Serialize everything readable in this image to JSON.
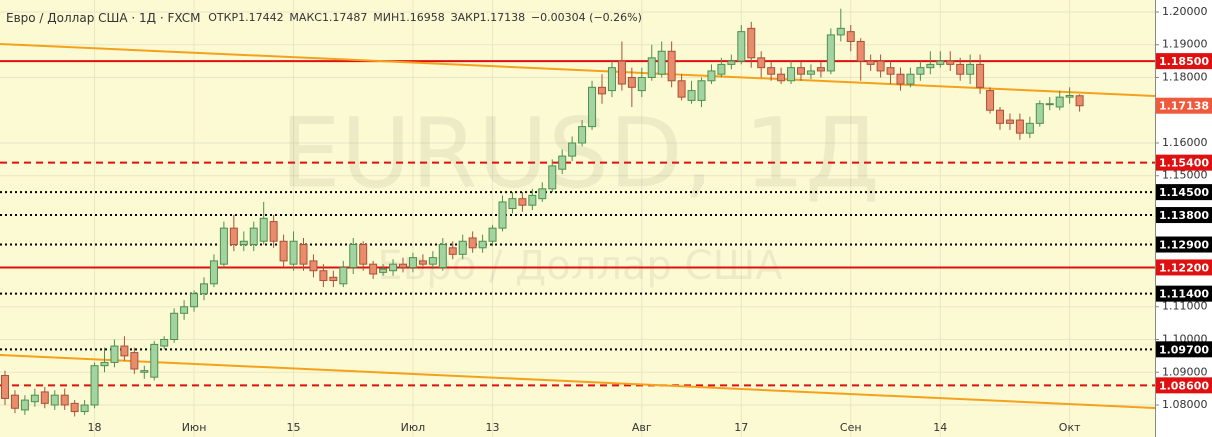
{
  "chart_data": {
    "type": "candlestick",
    "title": "Евро / Доллар США · 1Д · FXCM",
    "header": {
      "open_label": "ОТКР",
      "open": "1.17442",
      "high_label": "МАКС",
      "high": "1.17487",
      "low_label": "МИН",
      "low": "1.16958",
      "close_label": "ЗАКР",
      "close": "1.17138",
      "change": "−0.00304 (−0.26%)"
    },
    "watermark": {
      "symbol": "EURUSD, 1Д",
      "description": "Евро / Доллар США"
    },
    "categories": [
      null,
      null,
      null,
      null,
      null,
      null,
      null,
      null,
      null,
      "18",
      null,
      null,
      null,
      null,
      null,
      null,
      null,
      null,
      null,
      "Июн",
      null,
      null,
      null,
      null,
      null,
      null,
      null,
      null,
      null,
      "15",
      null,
      null,
      null,
      null,
      null,
      null,
      null,
      null,
      null,
      null,
      null,
      "Июл",
      null,
      null,
      null,
      null,
      null,
      null,
      null,
      "13",
      null,
      null,
      null,
      null,
      null,
      null,
      null,
      null,
      null,
      null,
      null,
      null,
      null,
      null,
      "Авг",
      null,
      null,
      null,
      null,
      null,
      null,
      null,
      null,
      null,
      "17",
      null,
      null,
      null,
      null,
      null,
      null,
      null,
      null,
      null,
      null,
      "Сен",
      null,
      null,
      null,
      null,
      null,
      null,
      null,
      null,
      "14",
      null,
      null,
      null,
      null,
      null,
      null,
      null,
      null,
      null,
      null,
      null,
      null,
      "Окт",
      null
    ],
    "open": [
      1.089,
      1.083,
      1.0785,
      1.081,
      1.084,
      1.08,
      1.083,
      1.0805,
      1.078,
      1.08,
      1.092,
      1.093,
      1.098,
      1.096,
      1.09,
      1.0885,
      1.098,
      1.1,
      1.108,
      1.11,
      1.114,
      1.117,
      1.123,
      1.134,
      1.129,
      1.129,
      1.13,
      1.136,
      1.13,
      1.123,
      1.129,
      1.124,
      1.121,
      1.119,
      1.117,
      1.122,
      1.129,
      1.123,
      1.1205,
      1.121,
      1.123,
      1.122,
      1.124,
      1.123,
      1.122,
      1.128,
      1.126,
      1.131,
      1.128,
      1.13,
      1.134,
      1.14,
      1.143,
      1.141,
      1.143,
      1.146,
      1.152,
      1.156,
      1.16,
      1.165,
      1.177,
      1.176,
      1.185,
      1.18,
      1.176,
      1.18,
      1.181,
      1.188,
      1.179,
      1.173,
      1.173,
      1.179,
      1.181,
      1.184,
      1.185,
      1.195,
      1.186,
      1.183,
      1.181,
      1.179,
      1.183,
      1.181,
      1.183,
      1.182,
      1.193,
      1.194,
      1.191,
      1.185,
      1.185,
      1.183,
      1.181,
      1.178,
      1.181,
      1.183,
      1.184,
      1.185,
      1.184,
      1.181,
      1.184,
      1.176,
      1.17,
      1.167,
      1.167,
      1.163,
      1.166,
      1.172,
      1.171,
      1.174,
      1.17442
    ],
    "high": [
      1.0905,
      1.0845,
      1.083,
      1.085,
      1.0855,
      1.0845,
      1.085,
      1.0815,
      1.0815,
      1.093,
      1.0975,
      1.1,
      1.101,
      1.0975,
      1.092,
      1.0995,
      1.101,
      1.1095,
      1.112,
      1.115,
      1.119,
      1.126,
      1.136,
      1.138,
      1.133,
      1.136,
      1.142,
      1.138,
      1.132,
      1.133,
      1.131,
      1.126,
      1.123,
      1.121,
      1.124,
      1.131,
      1.13,
      1.124,
      1.123,
      1.1245,
      1.125,
      1.1265,
      1.126,
      1.127,
      1.131,
      1.13,
      1.132,
      1.133,
      1.132,
      1.135,
      1.144,
      1.145,
      1.145,
      1.146,
      1.148,
      1.155,
      1.158,
      1.162,
      1.167,
      1.179,
      1.181,
      1.185,
      1.191,
      1.183,
      1.183,
      1.19,
      1.191,
      1.191,
      1.181,
      1.179,
      1.18,
      1.184,
      1.186,
      1.187,
      1.196,
      1.197,
      1.188,
      1.185,
      1.183,
      1.185,
      1.185,
      1.184,
      1.185,
      1.195,
      1.201,
      1.196,
      1.192,
      1.187,
      1.187,
      1.185,
      1.183,
      1.183,
      1.185,
      1.188,
      1.188,
      1.188,
      1.186,
      1.187,
      1.187,
      1.177,
      1.171,
      1.169,
      1.169,
      1.168,
      1.173,
      1.174,
      1.176,
      1.177,
      1.17487
    ],
    "low": [
      1.08,
      1.0775,
      1.077,
      1.0795,
      1.079,
      1.0785,
      1.0785,
      1.0765,
      1.077,
      1.079,
      1.09,
      1.0915,
      1.0935,
      1.0895,
      1.088,
      1.0875,
      1.097,
      1.099,
      1.106,
      1.1085,
      1.112,
      1.116,
      1.122,
      1.127,
      1.127,
      1.127,
      1.129,
      1.128,
      1.122,
      1.121,
      1.121,
      1.119,
      1.116,
      1.116,
      1.116,
      1.12,
      1.121,
      1.1185,
      1.1195,
      1.1195,
      1.1205,
      1.1205,
      1.1215,
      1.1215,
      1.121,
      1.1245,
      1.1245,
      1.1265,
      1.1265,
      1.1285,
      1.133,
      1.1385,
      1.139,
      1.1395,
      1.142,
      1.145,
      1.1505,
      1.1545,
      1.159,
      1.164,
      1.172,
      1.174,
      1.176,
      1.171,
      1.174,
      1.179,
      1.18,
      1.177,
      1.173,
      1.172,
      1.171,
      1.178,
      1.18,
      1.1825,
      1.184,
      1.183,
      1.18,
      1.179,
      1.178,
      1.178,
      1.179,
      1.1795,
      1.18,
      1.181,
      1.191,
      1.188,
      1.179,
      1.182,
      1.18,
      1.178,
      1.176,
      1.177,
      1.179,
      1.181,
      1.183,
      1.182,
      1.179,
      1.178,
      1.175,
      1.169,
      1.164,
      1.164,
      1.161,
      1.1615,
      1.165,
      1.17,
      1.17,
      1.172,
      1.16958
    ],
    "close": [
      1.082,
      1.079,
      1.0815,
      1.083,
      1.0805,
      1.083,
      1.08,
      1.078,
      1.08,
      1.092,
      1.093,
      1.098,
      1.095,
      1.091,
      1.0905,
      1.0985,
      1.1,
      1.108,
      1.11,
      1.114,
      1.117,
      1.124,
      1.134,
      1.129,
      1.13,
      1.134,
      1.137,
      1.13,
      1.124,
      1.13,
      1.123,
      1.121,
      1.118,
      1.118,
      1.122,
      1.129,
      1.123,
      1.12,
      1.1215,
      1.123,
      1.122,
      1.125,
      1.123,
      1.125,
      1.129,
      1.126,
      1.13,
      1.128,
      1.13,
      1.134,
      1.142,
      1.143,
      1.141,
      1.144,
      1.146,
      1.153,
      1.156,
      1.16,
      1.165,
      1.177,
      1.175,
      1.183,
      1.178,
      1.177,
      1.18,
      1.186,
      1.188,
      1.179,
      1.174,
      1.176,
      1.179,
      1.182,
      1.184,
      1.185,
      1.194,
      1.186,
      1.183,
      1.181,
      1.179,
      1.183,
      1.181,
      1.182,
      1.182,
      1.193,
      1.195,
      1.191,
      1.185,
      1.184,
      1.182,
      1.181,
      1.178,
      1.181,
      1.183,
      1.184,
      1.185,
      1.184,
      1.181,
      1.184,
      1.177,
      1.17,
      1.166,
      1.166,
      1.163,
      1.166,
      1.172,
      1.172,
      1.174,
      1.1745,
      1.17138
    ],
    "up_color": "#a3d3a0",
    "up_border": "#4e8f4e",
    "down_color": "#e98c6c",
    "down_border": "#a9503a",
    "ylim": [
      1.07023,
      1.20366
    ],
    "yticks": [
      {
        "value": 1.2,
        "label": "1.20000"
      },
      {
        "value": 1.19,
        "label": "1.19000"
      },
      {
        "value": 1.18,
        "label": "1.18000"
      },
      {
        "value": 1.16,
        "label": "1.16000"
      },
      {
        "value": 1.15,
        "label": "1.15000"
      },
      {
        "value": 1.11,
        "label": "1.11000"
      },
      {
        "value": 1.1,
        "label": "1.10000"
      },
      {
        "value": 1.09,
        "label": "1.09000"
      },
      {
        "value": 1.08,
        "label": "1.08000"
      }
    ],
    "grid": true,
    "levels": [
      {
        "value": 1.185,
        "label": "1.18500",
        "style": "solid",
        "color": "#e01010"
      },
      {
        "value": 1.17138,
        "label": "1.17138",
        "style": "none",
        "color": "#ef5a3c"
      },
      {
        "value": 1.154,
        "label": "1.15400",
        "style": "dashed",
        "color": "#e01010"
      },
      {
        "value": 1.145,
        "label": "1.14500",
        "style": "dotted",
        "color": "#000000"
      },
      {
        "value": 1.138,
        "label": "1.13800",
        "style": "dotted",
        "color": "#000000"
      },
      {
        "value": 1.129,
        "label": "1.12900",
        "style": "dotted",
        "color": "#000000"
      },
      {
        "value": 1.122,
        "label": "1.12200",
        "style": "solid",
        "color": "#e01010"
      },
      {
        "value": 1.114,
        "label": "1.11400",
        "style": "dotted",
        "color": "#000000"
      },
      {
        "value": 1.097,
        "label": "1.09700",
        "style": "dotted",
        "color": "#000000"
      },
      {
        "value": 1.086,
        "label": "1.08600",
        "style": "dashed",
        "color": "#e01010"
      }
    ],
    "trendlines": [
      {
        "from": 1.19023,
        "to": 1.17435,
        "color": "#f5a11c"
      },
      {
        "from": 1.09527,
        "to": 1.07908,
        "color": "#f5a11c"
      }
    ]
  }
}
